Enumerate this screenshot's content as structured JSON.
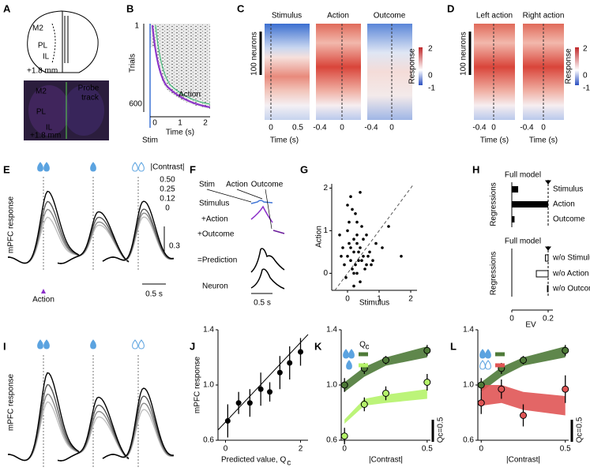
{
  "figure": {
    "panel_labels": [
      "A",
      "B",
      "C",
      "D",
      "E",
      "F",
      "G",
      "H",
      "I",
      "J",
      "K",
      "L"
    ],
    "A": {
      "schematic_labels": [
        "M2",
        "PL",
        "IL"
      ],
      "schematic_depth": "+1.8 mm",
      "histology_labels": [
        "M2",
        "PL",
        "IL"
      ],
      "probe_track": [
        "Probe",
        "track"
      ],
      "histology_depth": "+1.8 mm"
    },
    "B": {
      "y_top": "1",
      "y_bottom": "600",
      "ylabel": "Trials",
      "xticks": [
        "0",
        "1",
        "2"
      ],
      "xlabel": "Time (s)",
      "stim": "Stim",
      "action": "Action"
    },
    "C": {
      "titles": [
        "Stimulus",
        "Action",
        "Outcome"
      ],
      "scale": "100 neurons",
      "xticks": [
        [
          "0",
          "0.5"
        ],
        [
          "-0.4",
          "0"
        ],
        [
          "-0.4",
          "0"
        ]
      ],
      "xlabel": "Time (s)",
      "colorbar": [
        "2",
        "0",
        "-1"
      ],
      "colorbar_label": "Response"
    },
    "D": {
      "titles": [
        "Left action",
        "Right action"
      ],
      "scale": "100 neurons",
      "xticks": [
        [
          "-0.4",
          "0"
        ],
        [
          "-0.4",
          "0"
        ]
      ],
      "xlabel": "Time (s)",
      "colorbar": [
        "2",
        "0",
        "-1"
      ],
      "colorbar_label": "Response"
    },
    "E": {
      "legend_title": "|Contrast|",
      "legend": [
        "0.50",
        "0.25",
        "0.12",
        "0"
      ],
      "legend_colors": [
        "#000000",
        "#555555",
        "#8a8a8a",
        "#c0c0c0"
      ],
      "ylabel": "mPFC response",
      "scale_y": "0.3",
      "action": "Action",
      "scale_x": "0.5 s"
    },
    "F": {
      "events": [
        "Stim",
        "Action",
        "Outcome"
      ],
      "components": [
        "Stimulus",
        "+Action",
        "+Outcome"
      ],
      "component_colors": [
        "#3f74d6",
        "#8b2fc9",
        "#6a1b9a"
      ],
      "prediction": "=Prediction",
      "neuron": "Neuron",
      "scale_x": "0.5 s"
    },
    "I": {
      "ylabel": "mPFC response"
    }
  },
  "chart_data": [
    {
      "type": "scatter",
      "xlabel": "Stimulus",
      "ylabel": "Action",
      "xlabel_color": "#3f74d6",
      "ylabel_color": "#9b30d0",
      "color": "#000000",
      "x": [
        0.1,
        0.2,
        -0.1,
        0.3,
        0.5,
        0.0,
        0.15,
        0.4,
        -0.2,
        0.25,
        0.6,
        0.35,
        0.05,
        -0.05,
        0.45,
        0.2,
        0.7,
        0.1,
        0.3,
        0.8,
        -0.15,
        0.5,
        0.25,
        0.0,
        0.4,
        0.9,
        1.1,
        0.15,
        0.55,
        0.35,
        -0.25,
        0.65,
        0.05,
        0.3,
        0.2,
        0.45,
        1.3,
        0.1,
        0.6,
        0.2,
        0.0,
        1.7,
        0.4,
        0.75,
        0.3
      ],
      "values": [
        0.3,
        0.5,
        0.2,
        0.9,
        0.4,
        1.0,
        0.1,
        0.6,
        0.4,
        1.4,
        0.2,
        0.3,
        0.7,
        -0.1,
        1.1,
        0.0,
        0.5,
        1.8,
        1.2,
        0.3,
        0.6,
        0.8,
        0.2,
        0.4,
        -0.2,
        0.7,
        0.6,
        1.5,
        0.1,
        0.5,
        0.9,
        0.4,
        1.2,
        0.0,
        0.8,
        0.3,
        1.1,
        0.6,
        0.9,
        -0.3,
        1.6,
        0.4,
        1.9,
        0.2,
        0.7
      ],
      "xlim": [
        -0.5,
        2.2
      ],
      "ylim": [
        -0.4,
        2.1
      ],
      "xticks": [
        0,
        1,
        2
      ],
      "yticks": [
        0,
        1,
        2
      ]
    },
    {
      "type": "barh",
      "title": "Full model",
      "ylabel": "Regressions",
      "categories": [
        "Stimulus",
        "Action",
        "Outcome"
      ],
      "category_colors": [
        "#3f74d6",
        "#8b2fc9",
        "#6a1b9a"
      ],
      "values": [
        0.035,
        0.2,
        0.015
      ],
      "xlim": [
        0,
        0.2
      ],
      "color": "#000000"
    },
    {
      "type": "barh_open",
      "title": "Full model",
      "ylabel": "Regressions",
      "categories": [
        "w/o Stimulus",
        "w/o Action",
        "w/o Outcome"
      ],
      "category_colors": [
        "#3f74d6",
        "#8b2fc9",
        "#6a1b9a"
      ],
      "values": [
        0.015,
        0.065,
        0.004
      ],
      "xlim": [
        0,
        0.2
      ],
      "xticks": [
        0,
        0.2
      ],
      "xlabel": "EV",
      "color": "#000000"
    },
    {
      "type": "errorbar",
      "x": [
        0.06,
        0.35,
        0.65,
        0.94,
        1.18,
        1.45,
        1.71,
        2.0
      ],
      "values": [
        0.74,
        0.87,
        0.87,
        0.97,
        0.95,
        1.09,
        1.16,
        1.24
      ],
      "errors": [
        0.12,
        0.08,
        0.1,
        0.12,
        0.07,
        0.12,
        0.12,
        0.1
      ],
      "color": "#000000",
      "xlim": [
        -0.2,
        2.2
      ],
      "ylim": [
        0.6,
        1.4
      ],
      "xticks": [
        0,
        2
      ],
      "yticks": [
        0.6,
        {
          "value": 1,
          "label": "1.0"
        },
        1.4
      ],
      "xlabel": "Predicted value, Q",
      "xlabel_sub": "c",
      "ylabel": "mPFC response"
    },
    {
      "type": "errorbar",
      "x": [
        0,
        0.12,
        0.25,
        0.5
      ],
      "xlim": [
        -0.02,
        0.52
      ],
      "ylim": [
        0.6,
        1.4
      ],
      "xticks": [
        0,
        0.5
      ],
      "yticks": [
        0.6,
        {
          "value": 1,
          "label": "1.0"
        },
        1.4
      ],
      "xlabel": "|Contrast|",
      "legend_symbol": "Q",
      "legend_symbol_sub": "c",
      "scale_label": "Qc=0.5",
      "series": [
        {
          "color": "#4e7a38",
          "values": [
            1.0,
            1.12,
            1.18,
            1.25
          ],
          "errors": [
            0.05,
            0.04,
            0.03,
            0.04
          ],
          "band_low": [
            0.95,
            1.06,
            1.14,
            1.2
          ],
          "band_high": [
            1.02,
            1.13,
            1.2,
            1.28
          ]
        },
        {
          "color": "#b5f36a",
          "values": [
            0.63,
            0.86,
            0.94,
            1.02
          ],
          "errors": [
            0.06,
            0.05,
            0.05,
            0.06
          ],
          "band_low": [
            0.72,
            0.85,
            0.87,
            0.9
          ],
          "band_high": [
            0.75,
            0.9,
            0.93,
            0.97
          ]
        }
      ]
    },
    {
      "type": "errorbar",
      "x": [
        0,
        0.12,
        0.25,
        0.5
      ],
      "xlim": [
        -0.02,
        0.52
      ],
      "ylim": [
        0.6,
        1.4
      ],
      "xticks": [
        0,
        0.5
      ],
      "yticks": [
        0.6,
        {
          "value": 1,
          "label": "1.0"
        },
        1.4
      ],
      "xlabel": "|Contrast|",
      "scale_label": "Qc=0.5",
      "series": [
        {
          "color": "#4e7a38",
          "values": [
            1.0,
            1.12,
            1.18,
            1.25
          ],
          "errors": [
            0.05,
            0.04,
            0.03,
            0.04
          ],
          "band_low": [
            0.95,
            1.06,
            1.14,
            1.2
          ],
          "band_high": [
            1.02,
            1.13,
            1.2,
            1.28
          ]
        },
        {
          "color": "#e05555",
          "values": [
            0.87,
            0.97,
            0.78,
            0.97
          ],
          "errors": [
            0.08,
            0.07,
            0.08,
            0.1
          ],
          "band_low": [
            0.85,
            0.87,
            0.82,
            0.78
          ],
          "band_high": [
            1.0,
            1.0,
            0.95,
            0.92
          ]
        }
      ]
    }
  ]
}
